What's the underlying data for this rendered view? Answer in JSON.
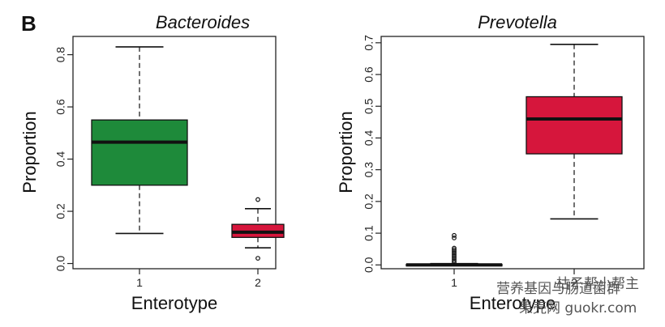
{
  "panel_letter": "B",
  "colors": {
    "green": "#1e8a3a",
    "red": "#d6163c",
    "median": "#111111",
    "axis": "#222222"
  },
  "chart_data": [
    {
      "type": "box",
      "title": "Bacteroides",
      "xlabel": "Enterotype",
      "ylabel": "Proportion",
      "categories": [
        "1",
        "2"
      ],
      "ylim": [
        -0.02,
        0.87
      ],
      "yticks": [
        0.0,
        0.2,
        0.4,
        0.6,
        0.8
      ],
      "ytick_labels": [
        "0.0",
        "0.2",
        "0.4",
        "0.6",
        "0.8"
      ],
      "boxes": [
        {
          "category": "1",
          "q1": 0.3,
          "median": 0.465,
          "q3": 0.55,
          "whislo": 0.115,
          "whishi": 0.83,
          "fliers": [],
          "color": "green"
        },
        {
          "category": "2",
          "q1": 0.1,
          "median": 0.12,
          "q3": 0.15,
          "whislo": 0.06,
          "whishi": 0.21,
          "fliers": [
            0.245,
            0.02
          ],
          "color": "red"
        }
      ]
    },
    {
      "type": "box",
      "title": "Prevotella",
      "xlabel": "Enterotype",
      "ylabel": "Proportion",
      "categories": [
        "1",
        "2"
      ],
      "ylim": [
        -0.012,
        0.72
      ],
      "yticks": [
        0.0,
        0.1,
        0.2,
        0.3,
        0.4,
        0.5,
        0.6,
        0.7
      ],
      "ytick_labels": [
        "0.0",
        "0.1",
        "0.2",
        "0.3",
        "0.4",
        "0.5",
        "0.6",
        "0.7"
      ],
      "boxes": [
        {
          "category": "1",
          "q1": 0.0,
          "median": 0.0,
          "q3": 0.002,
          "whislo": 0.0,
          "whishi": 0.004,
          "fliers": [
            0.008,
            0.013,
            0.018,
            0.023,
            0.028,
            0.033,
            0.038,
            0.043,
            0.048,
            0.053,
            0.085,
            0.093
          ],
          "color": "green"
        },
        {
          "category": "2",
          "q1": 0.35,
          "median": 0.46,
          "q3": 0.53,
          "whislo": 0.145,
          "whishi": 0.695,
          "fliers": [],
          "color": "red"
        }
      ]
    }
  ],
  "watermark": {
    "line1": "枯子帮小帮主",
    "line2": "营养基因与肠道菌群",
    "line3": "果壳网 guokr.com"
  }
}
